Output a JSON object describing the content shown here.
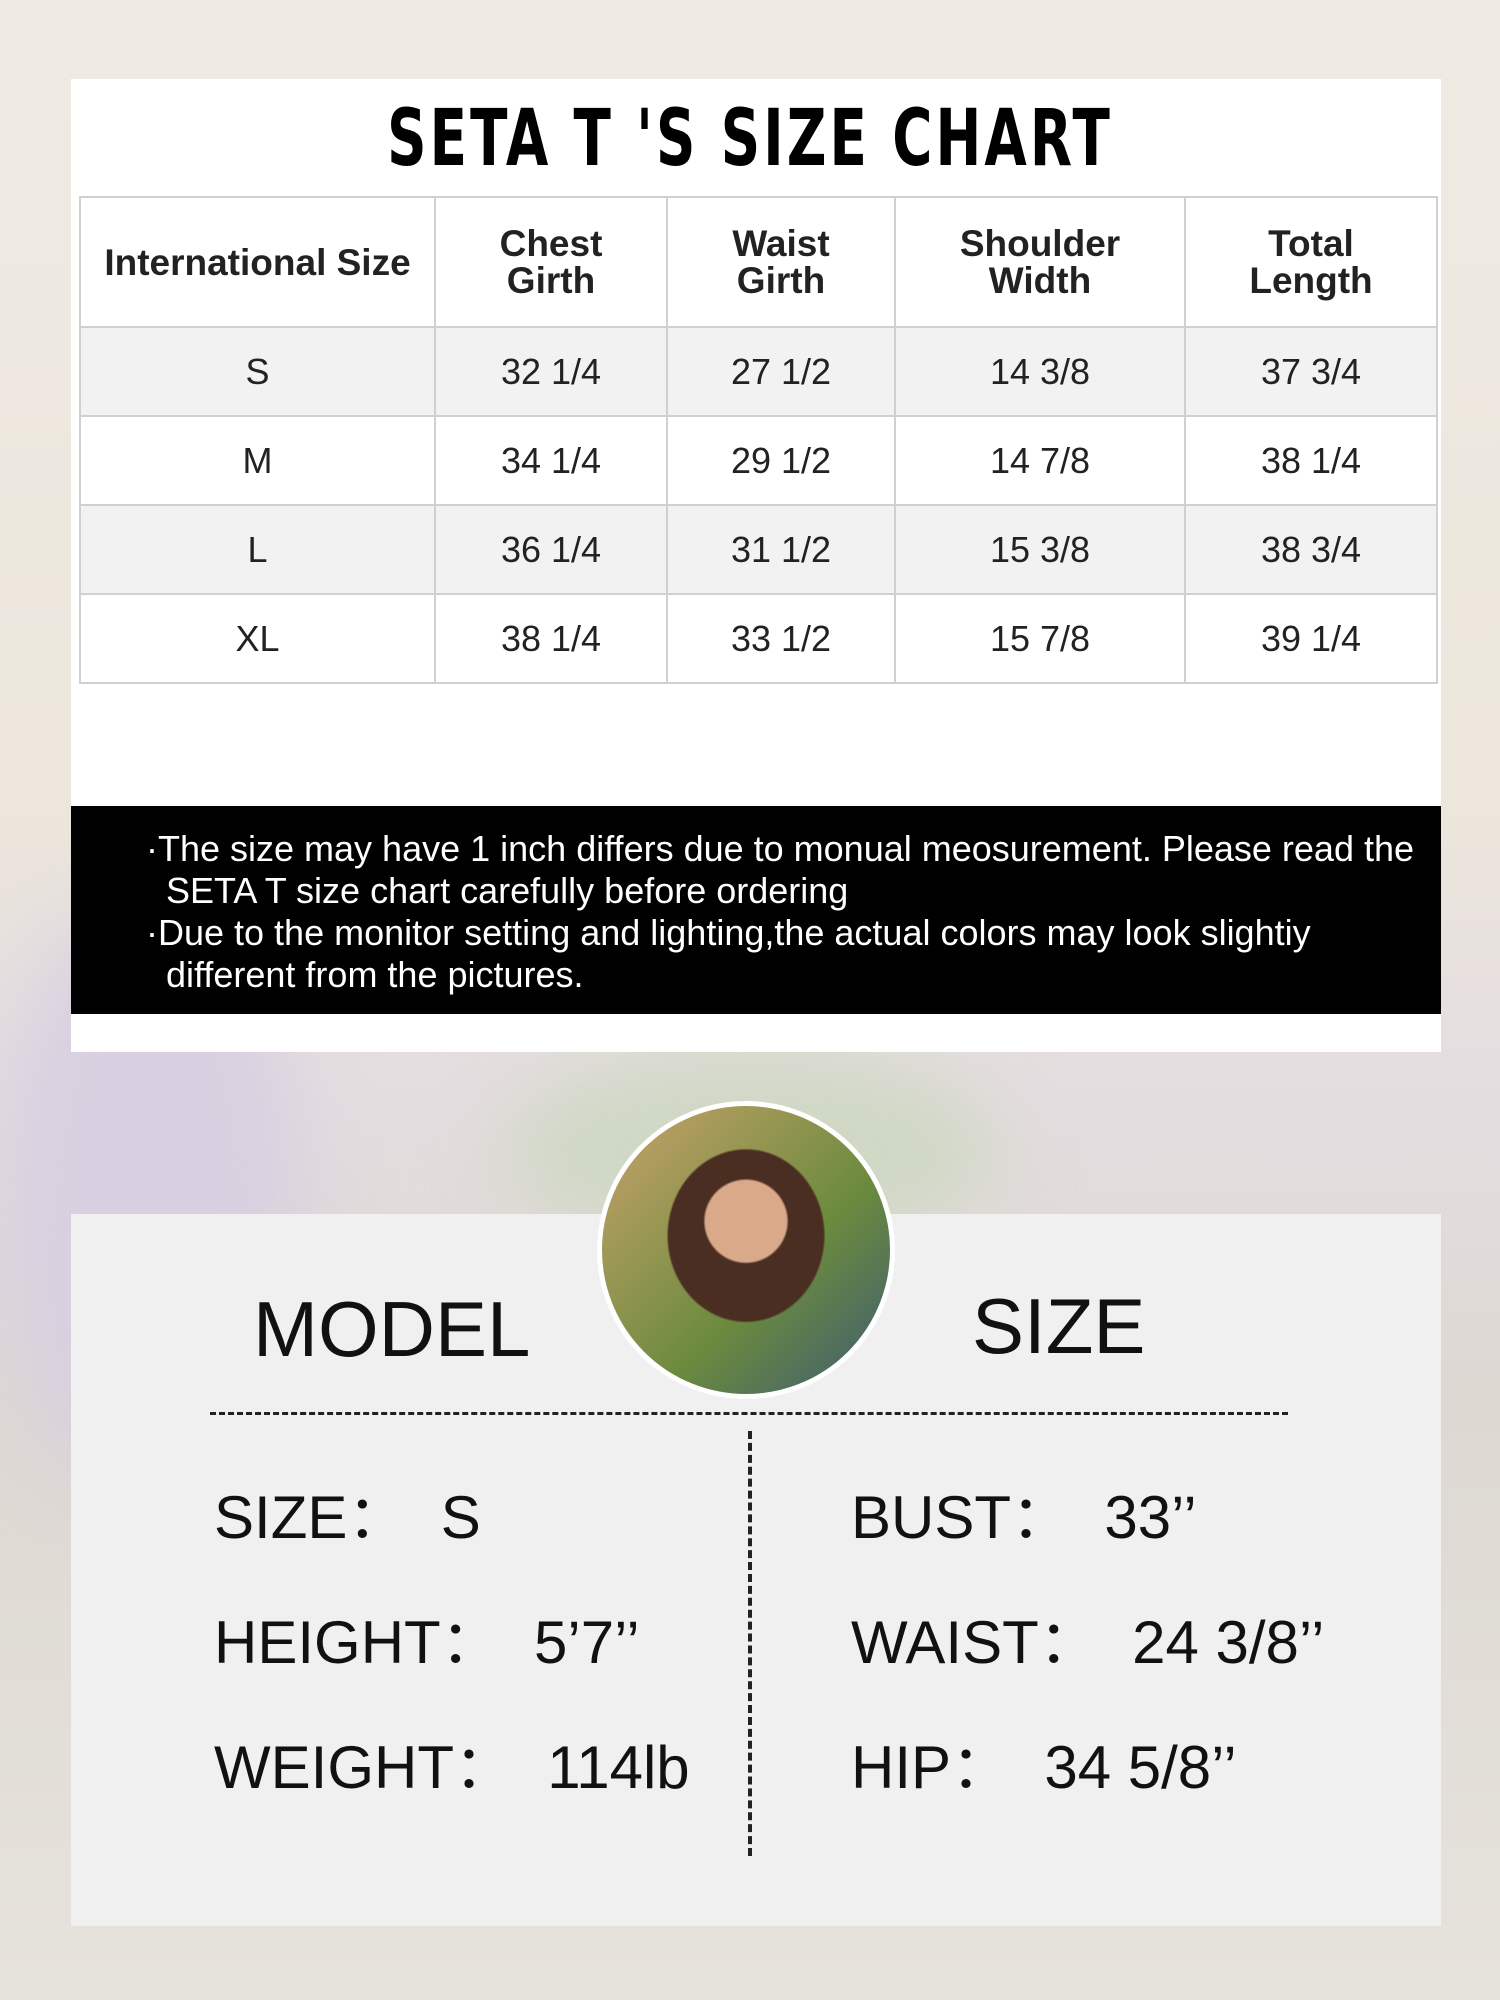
{
  "title": "SETA T 'S SIZE CHART",
  "table": {
    "headers": [
      [
        "International Size"
      ],
      [
        "Chest",
        "Girth"
      ],
      [
        "Waist",
        "Girth"
      ],
      [
        "Shoulder",
        "Width"
      ],
      [
        "Total",
        "Length"
      ]
    ],
    "rows": [
      [
        "S",
        "32 1/4",
        "27 1/2",
        "14 3/8",
        "37 3/4"
      ],
      [
        "M",
        "34 1/4",
        "29 1/2",
        "14 7/8",
        "38 1/4"
      ],
      [
        "L",
        "36 1/4",
        "31 1/2",
        "15 3/8",
        "38 3/4"
      ],
      [
        "XL",
        "38 1/4",
        "33 1/2",
        "15 7/8",
        "39 1/4"
      ]
    ]
  },
  "notes": [
    "·The size may have 1 inch differs due to monual meosurement. Please read the SETA T size chart carefully before ordering",
    "·Due to the monitor setting and lighting,the actual colors may look slightiy different from the pictures."
  ],
  "model": {
    "heading_left": "MODEL",
    "heading_right": "SIZE",
    "left": [
      "SIZE：  S",
      "HEIGHT：  5’7’’",
      "WEIGHT：  114lb"
    ],
    "right": [
      "BUST：  33’’",
      "WAIST：  24 3/8’’",
      "HIP：  34 5/8’’"
    ]
  }
}
